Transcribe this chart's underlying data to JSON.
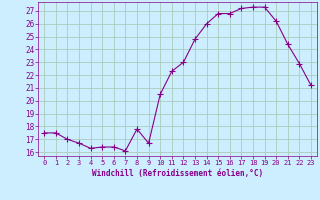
{
  "x": [
    0,
    1,
    2,
    3,
    4,
    5,
    6,
    7,
    8,
    9,
    10,
    11,
    12,
    13,
    14,
    15,
    16,
    17,
    18,
    19,
    20,
    21,
    22,
    23
  ],
  "y": [
    17.5,
    17.5,
    17.0,
    16.7,
    16.3,
    16.4,
    16.4,
    16.1,
    17.8,
    16.7,
    20.5,
    22.3,
    23.0,
    24.8,
    26.0,
    26.8,
    26.8,
    27.2,
    27.3,
    27.3,
    26.2,
    24.4,
    22.9,
    21.2
  ],
  "line_color": "#880088",
  "marker": "D",
  "marker_size": 2.0,
  "bg_color": "#cceeff",
  "grid_color": "#aaccbb",
  "tick_color": "#880088",
  "label_color": "#880088",
  "xlabel": "Windchill (Refroidissement éolien,°C)",
  "ylim": [
    15.7,
    27.7
  ],
  "xlim": [
    -0.5,
    23.5
  ],
  "yticks": [
    16,
    17,
    18,
    19,
    20,
    21,
    22,
    23,
    24,
    25,
    26,
    27
  ],
  "xticks": [
    0,
    1,
    2,
    3,
    4,
    5,
    6,
    7,
    8,
    9,
    10,
    11,
    12,
    13,
    14,
    15,
    16,
    17,
    18,
    19,
    20,
    21,
    22,
    23
  ]
}
